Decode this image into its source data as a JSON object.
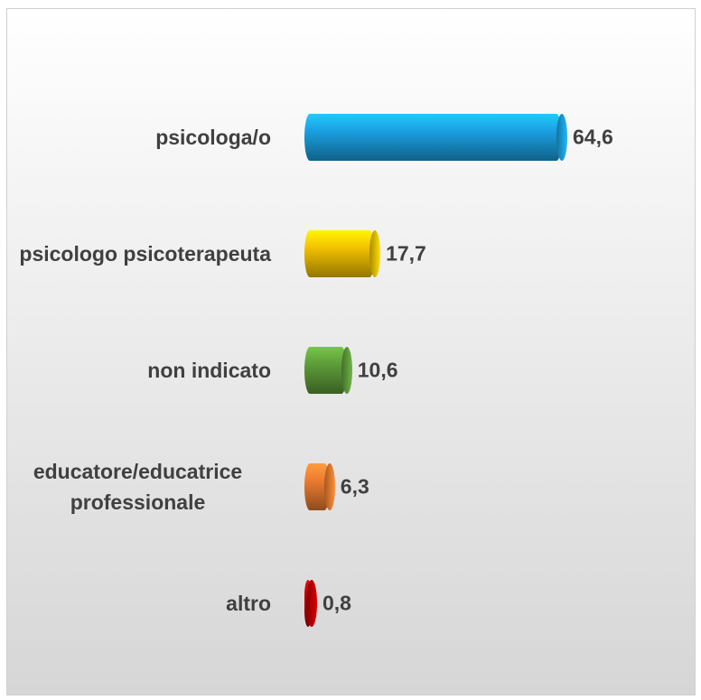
{
  "chart_data": {
    "type": "bar",
    "orientation": "horizontal",
    "categories": [
      "psicologa/o",
      "psicologo psicoterapeuta",
      "non indicato",
      "educatore/educatrice professionale",
      "altro"
    ],
    "values": [
      64.6,
      17.7,
      10.6,
      6.3,
      0.8
    ],
    "value_labels": [
      "64,6",
      "17,7",
      "10,6",
      "6,3",
      "0,8"
    ],
    "colors": [
      "#1ba1e2",
      "#f5c400",
      "#5f9e3a",
      "#ed7d31",
      "#c00000"
    ]
  }
}
